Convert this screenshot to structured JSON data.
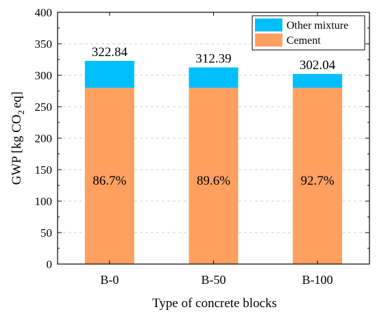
{
  "chart_data": {
    "type": "bar",
    "stacked": true,
    "categories": [
      "B-0",
      "B-50",
      "B-100"
    ],
    "series": [
      {
        "name": "Cement",
        "values": [
          280,
          280,
          280
        ],
        "color": "#FFA060"
      },
      {
        "name": "Other mixture",
        "values": [
          42.84,
          32.39,
          22.04
        ],
        "color": "#00BFFF"
      }
    ],
    "totals": [
      "322.84",
      "312.39",
      "302.04"
    ],
    "percent_labels": [
      "86.7%",
      "89.6%",
      "92.7%"
    ],
    "xlabel": "Type of concrete blocks",
    "ylabel": {
      "prefix": "GWP [kg CO",
      "sub": "2",
      "suffix": "eq]"
    },
    "ylim": [
      0,
      400
    ],
    "yticks": [
      "0",
      "50",
      "100",
      "150",
      "200",
      "250",
      "300",
      "350",
      "400"
    ],
    "grid": true,
    "legend_position": "top-right",
    "legend_order": [
      "Other mixture",
      "Cement"
    ]
  }
}
